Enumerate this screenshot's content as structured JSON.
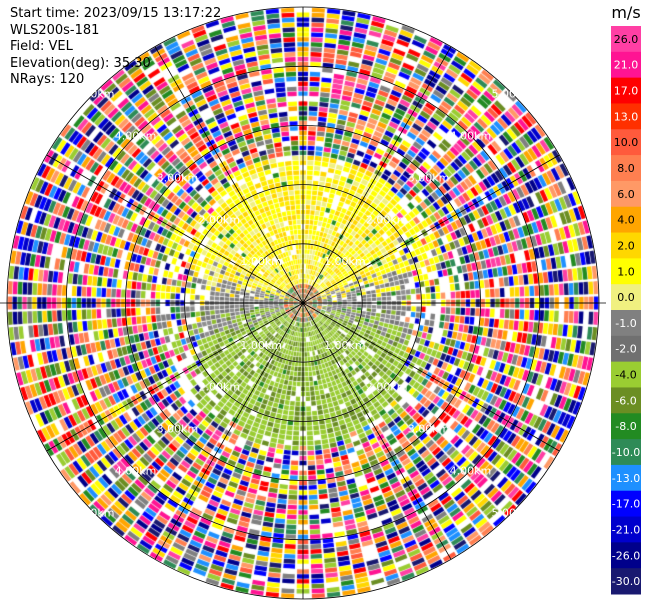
{
  "header": {
    "start_time": "Start time: 2023/09/15 13:17:22",
    "instrument": "WLS200s-181",
    "field": "Field: VEL",
    "elevation": "Elevation(deg): 35.30",
    "nrays": "NRays: 120"
  },
  "colorbar": {
    "unit": "m/s",
    "ticks": [
      "26.0",
      "21.0",
      "17.0",
      "13.0",
      "10.0",
      "8.0",
      "6.0",
      "4.0",
      "2.0",
      "1.0",
      "0.0",
      "-1.0",
      "-2.0",
      "-4.0",
      "-6.0",
      "-8.0",
      "-10.0",
      "-13.0",
      "-17.0",
      "-21.0",
      "-26.0",
      "-30.0"
    ],
    "colors": [
      "#ff3fa4",
      "#ff1493",
      "#ff0000",
      "#ff3000",
      "#ff5a3c",
      "#ff7f50",
      "#ff9966",
      "#ffa500",
      "#ffd700",
      "#ffff00",
      "#f0f080",
      "#808080",
      "#707070",
      "#9acd32",
      "#6b8e23",
      "#228b22",
      "#2e8b57",
      "#1e90ff",
      "#0000ff",
      "#0000cd",
      "#00008b",
      "#191970"
    ]
  },
  "chart_data": {
    "type": "heatmap",
    "projection": "polar PPI",
    "field": "VEL",
    "units": "m/s",
    "nrays": 120,
    "range_rings_km": [
      1,
      2,
      3,
      4,
      5
    ],
    "range_ring_labels": [
      "1.00km",
      "2.00km",
      "3.00km",
      "4.00km",
      "5.00km"
    ],
    "spokes_deg": [
      0,
      30,
      60,
      90,
      120,
      150,
      180,
      210,
      240,
      270,
      300,
      330
    ],
    "pattern": {
      "north_sector": "positive velocity (1 to 4 m/s)",
      "south_sector": "negative velocity (-1 to -4 m/s)",
      "east_west_transition": "near zero (-1 to 1 m/s)",
      "beyond_2.5km": "noise (random values)"
    },
    "vmin": -30,
    "vmax": 30
  }
}
